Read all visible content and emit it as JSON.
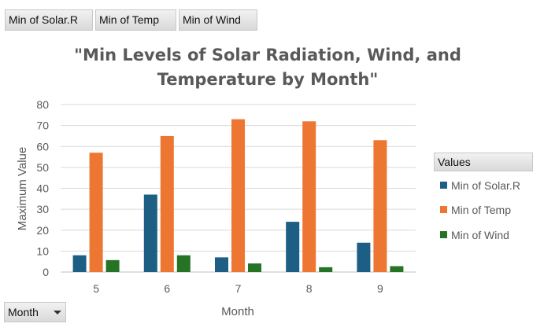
{
  "field_buttons": {
    "solar": "Min of Solar.R",
    "temp": "Min of Temp",
    "wind": "Min of Wind"
  },
  "legend": {
    "header": "Values",
    "items": [
      "Min of Solar.R",
      "Min of Temp",
      "Min of Wind"
    ]
  },
  "axis_field_button": "Month",
  "colors": {
    "solar": "#1c5e84",
    "temp": "#ed7732",
    "wind": "#267326"
  },
  "chart_data": {
    "type": "bar",
    "title": "\"Min Levels of  Solar Radiation, Wind, and Temperature by Month\"",
    "title_lines": [
      "\"Min Levels of  Solar Radiation, Wind, and",
      "Temperature by Month\""
    ],
    "xlabel": "Month",
    "ylabel": "Maximum Value",
    "categories": [
      "5",
      "6",
      "7",
      "8",
      "9"
    ],
    "yticks": [
      "0",
      "10",
      "20",
      "30",
      "40",
      "50",
      "60",
      "70",
      "80"
    ],
    "ylim": [
      0,
      80
    ],
    "grid": true,
    "legend_position": "right",
    "series": [
      {
        "name": "Min of Solar.R",
        "values": [
          8,
          37,
          7,
          24,
          14
        ]
      },
      {
        "name": "Min of Temp",
        "values": [
          57,
          65,
          73,
          72,
          63
        ]
      },
      {
        "name": "Min of Wind",
        "values": [
          5.7,
          8,
          4.1,
          2.3,
          2.8
        ]
      }
    ]
  }
}
